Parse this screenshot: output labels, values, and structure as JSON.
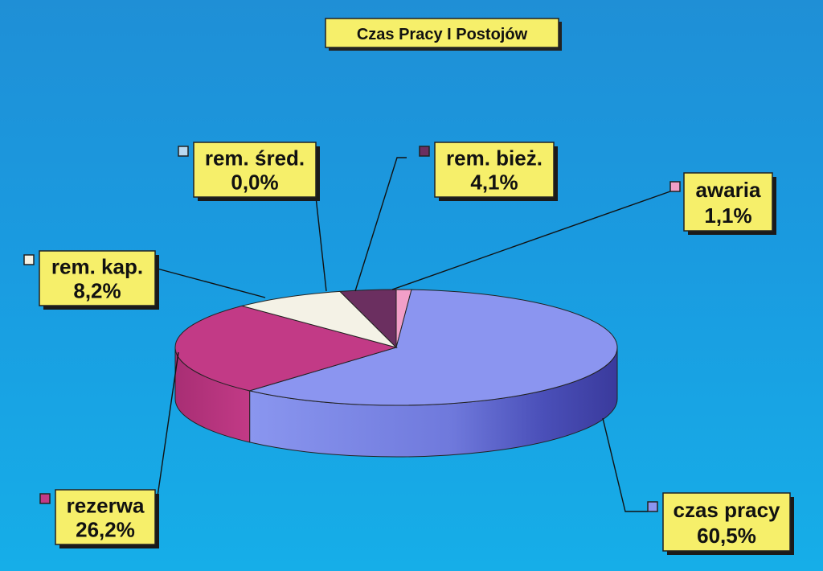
{
  "chart_data": {
    "type": "pie",
    "title": "Czas Pracy I Postojów",
    "colors": {
      "czas_pracy": "#8b95f0",
      "rezerwa": "#c23a86",
      "rem_kap": "#f4f2e6",
      "rem_sred": "#b9d8f0",
      "rem_biez": "#6b2f60",
      "awaria": "#f29fc8",
      "label_box": "#f6ef6a"
    },
    "slices": [
      {
        "key": "awaria",
        "label": "awaria",
        "value": 1.1,
        "value_text": "1,1%"
      },
      {
        "key": "czas_pracy",
        "label": "czas pracy",
        "value": 60.5,
        "value_text": "60,5%"
      },
      {
        "key": "rezerwa",
        "label": "rezerwa",
        "value": 26.2,
        "value_text": "26,2%"
      },
      {
        "key": "rem_kap",
        "label": "rem. kap.",
        "value": 8.2,
        "value_text": "8,2%"
      },
      {
        "key": "rem_sred",
        "label": "rem. śred.",
        "value": 0.0,
        "value_text": "0,0%"
      },
      {
        "key": "rem_biez",
        "label": "rem. bież.",
        "value": 4.1,
        "value_text": "4,1%"
      }
    ]
  }
}
